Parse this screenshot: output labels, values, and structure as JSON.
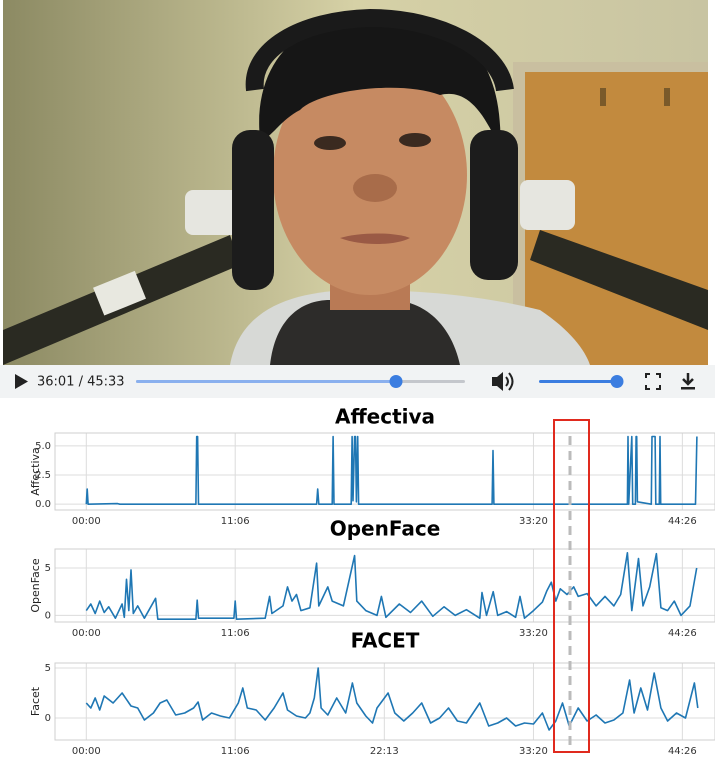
{
  "video_player": {
    "time_display": "36:01 / 45:33"
  },
  "chart_data": [
    {
      "type": "line",
      "title": "Affectiva",
      "y_label": "Affectiva",
      "color": "#1f77b4",
      "grid": true,
      "xlim": [
        -140,
        2812
      ],
      "ylim": [
        -0.5,
        6.1
      ],
      "xticks": [
        {
          "value": 0,
          "label": "00:00"
        },
        {
          "value": 666,
          "label": "11:06"
        },
        {
          "value": 2000,
          "label": "33:20"
        },
        {
          "value": 2666,
          "label": "44:26"
        }
      ],
      "yticks": [
        {
          "value": 0,
          "label": "0.0"
        },
        {
          "value": 2.5,
          "label": "2.5"
        },
        {
          "value": 5,
          "label": "5.0"
        }
      ],
      "x": [
        0,
        4,
        8,
        140,
        150,
        490,
        494,
        498,
        502,
        1030,
        1035,
        1040,
        1100,
        1104,
        1108,
        1185,
        1189,
        1193,
        1200,
        1204,
        1208,
        1214,
        1218,
        1815,
        1819,
        1823,
        2420,
        2423,
        2426,
        2440,
        2444,
        2456,
        2459,
        2462,
        2465,
        2527,
        2530,
        2544,
        2547,
        2563,
        2566,
        2569,
        2725,
        2731
      ],
      "values": [
        0,
        1.3,
        0,
        0.05,
        0,
        0,
        5.8,
        5.8,
        0,
        0,
        1.3,
        0,
        0,
        5.8,
        0,
        0,
        5.8,
        0.3,
        5.8,
        5.8,
        0.2,
        5.8,
        0,
        0,
        4.6,
        0,
        0,
        5.8,
        0,
        5.8,
        0,
        0,
        5.8,
        5.8,
        0.2,
        0,
        5.8,
        5.8,
        0,
        0,
        5.8,
        0,
        0,
        5.8
      ]
    },
    {
      "type": "line",
      "title": "OpenFace",
      "y_label": "OpenFace",
      "color": "#1f77b4",
      "grid": true,
      "xlim": [
        -140,
        2812
      ],
      "ylim": [
        -0.7,
        7
      ],
      "xticks": [
        {
          "value": 0,
          "label": "00:00"
        },
        {
          "value": 666,
          "label": "11:06"
        },
        {
          "value": 2000,
          "label": "33:20"
        },
        {
          "value": 2666,
          "label": "44:26"
        }
      ],
      "yticks": [
        0,
        5
      ],
      "x": [
        0,
        20,
        40,
        60,
        80,
        100,
        130,
        160,
        170,
        180,
        190,
        200,
        210,
        230,
        260,
        310,
        320,
        490,
        496,
        502,
        660,
        666,
        672,
        800,
        820,
        830,
        880,
        900,
        920,
        940,
        960,
        1000,
        1030,
        1040,
        1080,
        1100,
        1150,
        1200,
        1210,
        1250,
        1300,
        1320,
        1340,
        1400,
        1450,
        1500,
        1550,
        1600,
        1650,
        1700,
        1760,
        1770,
        1790,
        1820,
        1840,
        1880,
        1920,
        1940,
        1960,
        2000,
        2040,
        2060,
        2080,
        2100,
        2120,
        2150,
        2180,
        2200,
        2240,
        2280,
        2320,
        2360,
        2390,
        2420,
        2440,
        2470,
        2490,
        2520,
        2550,
        2570,
        2600,
        2630,
        2660,
        2700,
        2730
      ],
      "values": [
        0.5,
        1.2,
        0.2,
        1.5,
        0.3,
        0.9,
        -0.3,
        1.2,
        -0.2,
        3.8,
        0.5,
        4.8,
        0.2,
        1.0,
        -0.3,
        1.8,
        -0.4,
        -0.4,
        1.6,
        -0.3,
        -0.3,
        1.5,
        -0.4,
        -0.3,
        2.0,
        0.2,
        1.0,
        3.0,
        1.5,
        2.2,
        0.5,
        0.8,
        5.5,
        1.0,
        3.0,
        1.5,
        1.0,
        6.3,
        1.5,
        0.5,
        0.0,
        2.0,
        -0.2,
        1.2,
        0.3,
        1.5,
        -0.1,
        0.9,
        0.0,
        0.6,
        -0.3,
        2.4,
        0.0,
        2.5,
        0.0,
        0.4,
        -0.2,
        2.0,
        -0.3,
        0.5,
        1.4,
        2.6,
        3.5,
        1.5,
        2.8,
        2.2,
        3.0,
        2.0,
        2.3,
        1.0,
        2.0,
        1.0,
        2.2,
        6.6,
        0.5,
        6.0,
        1.0,
        3.0,
        6.5,
        0.8,
        0.5,
        1.5,
        0.0,
        1.0,
        5.0
      ]
    },
    {
      "type": "line",
      "title": "FACET",
      "y_label": "Facet",
      "color": "#1f77b4",
      "grid": true,
      "xlim": [
        -140,
        2812
      ],
      "ylim": [
        -2.2,
        5.5
      ],
      "xticks": [
        {
          "value": 0,
          "label": "00:00"
        },
        {
          "value": 666,
          "label": "11:06"
        },
        {
          "value": 1333,
          "label": "22:13"
        },
        {
          "value": 2000,
          "label": "33:20"
        },
        {
          "value": 2666,
          "label": "44:26"
        }
      ],
      "yticks": [
        0,
        5
      ],
      "x": [
        0,
        20,
        40,
        60,
        80,
        120,
        160,
        200,
        230,
        260,
        300,
        330,
        360,
        400,
        440,
        480,
        500,
        520,
        560,
        600,
        640,
        680,
        700,
        720,
        760,
        800,
        840,
        880,
        900,
        940,
        980,
        1000,
        1020,
        1037,
        1050,
        1080,
        1120,
        1160,
        1190,
        1210,
        1250,
        1280,
        1300,
        1350,
        1380,
        1420,
        1460,
        1500,
        1540,
        1580,
        1620,
        1660,
        1700,
        1760,
        1800,
        1840,
        1880,
        1920,
        1960,
        2000,
        2040,
        2070,
        2100,
        2130,
        2160,
        2200,
        2240,
        2280,
        2320,
        2360,
        2400,
        2430,
        2450,
        2480,
        2510,
        2540,
        2570,
        2600,
        2640,
        2680,
        2720,
        2735
      ],
      "values": [
        1.5,
        1.0,
        2.0,
        0.8,
        2.2,
        1.5,
        2.5,
        1.2,
        1.0,
        -0.2,
        0.5,
        1.5,
        1.8,
        0.3,
        0.5,
        1.0,
        1.6,
        -0.2,
        0.5,
        0.2,
        0.0,
        1.5,
        3.0,
        1.0,
        0.8,
        -0.2,
        1.0,
        2.5,
        0.8,
        0.2,
        0.0,
        0.5,
        2.0,
        5.0,
        1.0,
        0.3,
        2.0,
        0.5,
        3.5,
        1.5,
        0.2,
        -0.5,
        1.0,
        2.5,
        0.5,
        -0.3,
        0.5,
        1.5,
        -0.5,
        0.0,
        1.0,
        -0.3,
        -0.5,
        1.5,
        -0.8,
        -0.5,
        0.0,
        -0.8,
        -0.5,
        -0.6,
        0.5,
        -1.2,
        -0.3,
        1.5,
        -0.8,
        1.0,
        -0.3,
        0.3,
        -0.5,
        -0.2,
        0.5,
        3.8,
        0.5,
        3.0,
        0.8,
        4.5,
        1.0,
        -0.3,
        0.5,
        0.0,
        3.5,
        1.0
      ]
    }
  ]
}
